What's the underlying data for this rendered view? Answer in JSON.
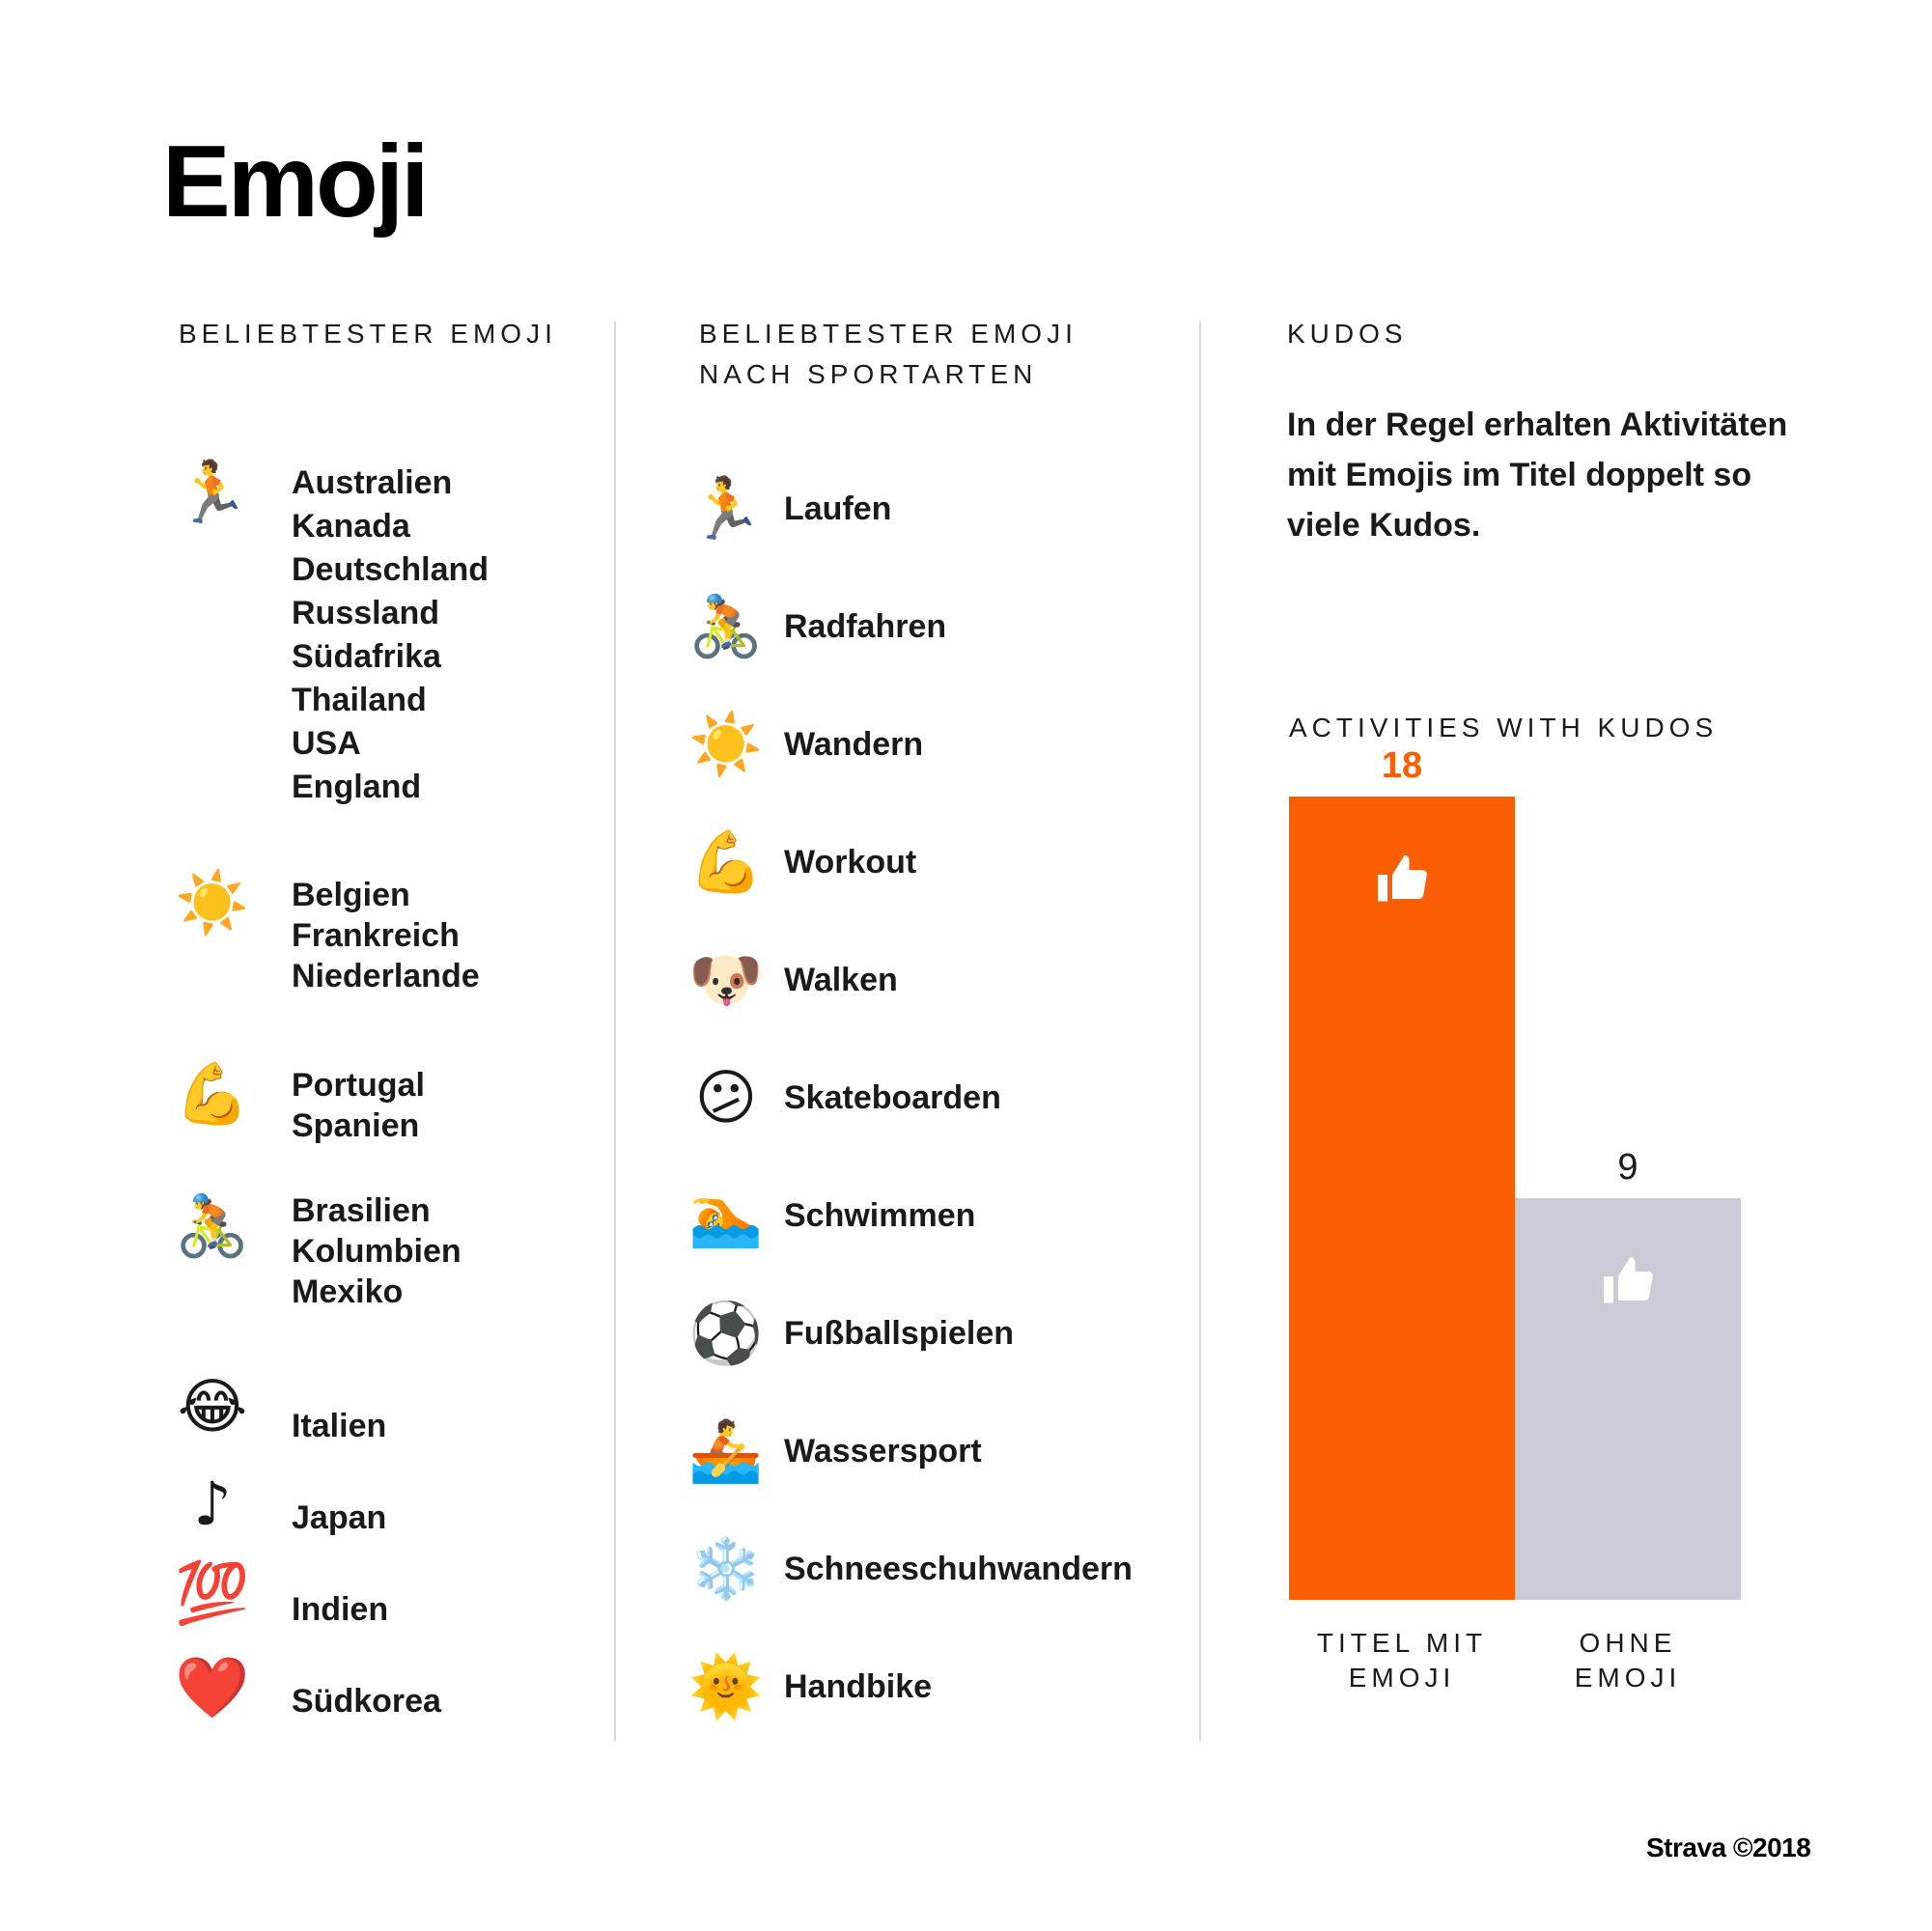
{
  "title": "Emoji",
  "col1": {
    "header": "BELIEBTESTER EMOJI",
    "groups": [
      {
        "emoji": "🏃",
        "countries": [
          "Australien",
          "Kanada",
          "Deutschland",
          "Russland",
          "Südafrika",
          "Thailand",
          "USA",
          "England"
        ]
      },
      {
        "emoji": "☀️",
        "countries": [
          "Belgien",
          "Frankreich",
          "Niederlande"
        ]
      },
      {
        "emoji": "💪",
        "countries": [
          "Portugal",
          "Spanien"
        ]
      },
      {
        "emoji": "🚴",
        "countries": [
          "Brasilien",
          "Kolumbien",
          "Mexiko"
        ]
      },
      {
        "emoji": "😂",
        "countries": [
          "Italien"
        ]
      },
      {
        "emoji": "♪",
        "countries": [
          "Japan"
        ]
      },
      {
        "emoji": "💯",
        "countries": [
          "Indien"
        ]
      },
      {
        "emoji": "❤️",
        "countries": [
          "Südkorea"
        ]
      }
    ]
  },
  "col2": {
    "header_line1": "BELIEBTESTER EMOJI",
    "header_line2": "NACH SPORTARTEN",
    "sports": [
      {
        "emoji": "🏃",
        "label": "Laufen"
      },
      {
        "emoji": "🚴",
        "label": "Radfahren"
      },
      {
        "emoji": "☀️",
        "label": "Wandern"
      },
      {
        "emoji": "💪",
        "label": "Workout"
      },
      {
        "emoji": "🐶",
        "label": "Walken"
      },
      {
        "emoji": "😕",
        "label": "Skateboarden"
      },
      {
        "emoji": "🏊",
        "label": "Schwimmen"
      },
      {
        "emoji": "⚽",
        "label": "Fußballspielen"
      },
      {
        "emoji": "🚣",
        "label": "Wassersport"
      },
      {
        "emoji": "❄️",
        "label": "Schneeschuhwandern"
      },
      {
        "emoji": "🌞",
        "label": "Handbike"
      }
    ]
  },
  "col3": {
    "header": "KUDOS",
    "text": "In der Regel erhalten Aktivitäten mit Emojis im Titel doppelt so viele Kudos."
  },
  "chart_data": {
    "type": "bar",
    "title": "ACTIVITIES WITH KUDOS",
    "categories": [
      [
        "TITEL MIT",
        "EMOJI"
      ],
      [
        "OHNE",
        "EMOJI"
      ]
    ],
    "values": [
      18,
      9
    ],
    "value_labels": [
      "18",
      "9"
    ],
    "colors": [
      "#fc5e03",
      "#cbcbd6"
    ],
    "label_colors": [
      "#fc5e03",
      "#1a1a1a"
    ],
    "icon": "thumbs-up-icon",
    "ylim": [
      0,
      18
    ]
  },
  "footer": "Strava ©2018"
}
